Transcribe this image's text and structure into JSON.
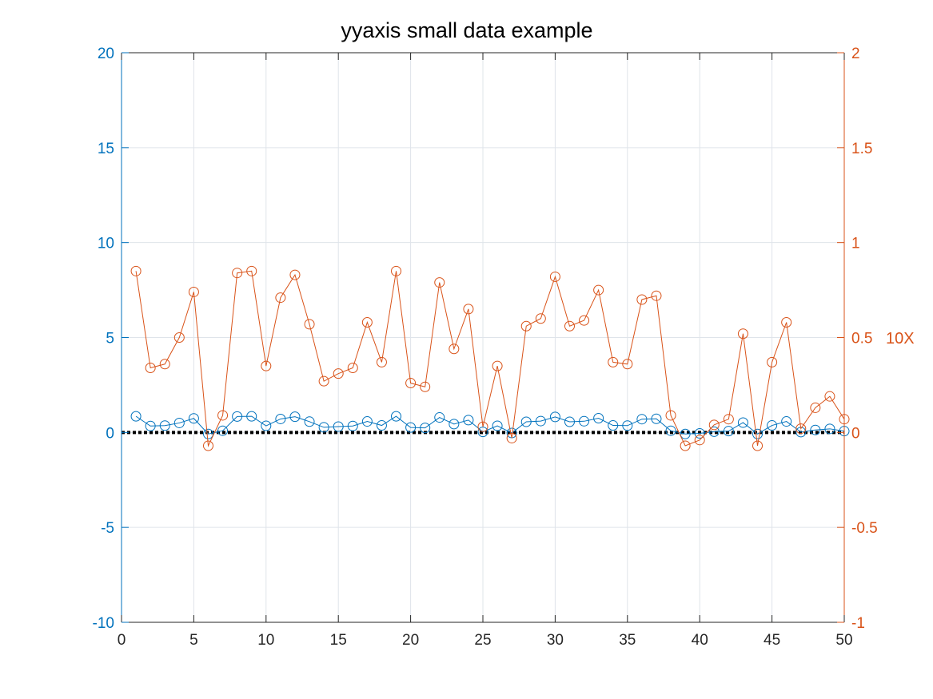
{
  "chart_data": {
    "type": "line",
    "title": "yyaxis  small data example",
    "xlim": [
      0,
      50
    ],
    "x_ticks": [
      0,
      5,
      10,
      15,
      20,
      25,
      30,
      35,
      40,
      45,
      50
    ],
    "grid": true,
    "left_axis": {
      "ylim": [
        -10,
        20
      ],
      "ticks": [
        -10,
        -5,
        0,
        5,
        10,
        15,
        20
      ],
      "color": "#0072BD"
    },
    "right_axis": {
      "ylim": [
        -1,
        2
      ],
      "ticks": [
        -1,
        -0.5,
        0,
        0.5,
        1,
        1.5,
        2
      ],
      "color": "#D95319",
      "ylabel": "10X"
    },
    "reference_line": {
      "y": 0,
      "style": "dotted",
      "color": "#000000"
    },
    "x": [
      1,
      2,
      3,
      4,
      5,
      6,
      7,
      8,
      9,
      10,
      11,
      12,
      13,
      14,
      15,
      16,
      17,
      18,
      19,
      20,
      21,
      22,
      23,
      24,
      25,
      26,
      27,
      28,
      29,
      30,
      31,
      32,
      33,
      34,
      35,
      36,
      37,
      38,
      39,
      40,
      41,
      42,
      43,
      44,
      45,
      46,
      47,
      48,
      49,
      50
    ],
    "series": [
      {
        "axis": "left",
        "color": "#0072BD",
        "marker": "circle",
        "values": [
          0.85,
          0.34,
          0.36,
          0.5,
          0.74,
          -0.08,
          0.09,
          0.84,
          0.85,
          0.35,
          0.71,
          0.83,
          0.57,
          0.27,
          0.31,
          0.34,
          0.58,
          0.37,
          0.85,
          0.26,
          0.24,
          0.79,
          0.44,
          0.65,
          0.03,
          0.35,
          -0.03,
          0.56,
          0.6,
          0.82,
          0.56,
          0.59,
          0.75,
          0.37,
          0.36,
          0.7,
          0.72,
          0.09,
          -0.08,
          -0.05,
          0.04,
          0.07,
          0.52,
          -0.08,
          0.37,
          0.58,
          0.02,
          0.13,
          0.19,
          0.07
        ]
      },
      {
        "axis": "right",
        "color": "#D95319",
        "marker": "circle",
        "values": [
          0.85,
          0.34,
          0.36,
          0.5,
          0.74,
          -0.07,
          0.09,
          0.84,
          0.85,
          0.35,
          0.71,
          0.83,
          0.57,
          0.27,
          0.31,
          0.34,
          0.58,
          0.37,
          0.85,
          0.26,
          0.24,
          0.79,
          0.44,
          0.65,
          0.03,
          0.35,
          -0.03,
          0.56,
          0.6,
          0.82,
          0.56,
          0.59,
          0.75,
          0.37,
          0.36,
          0.7,
          0.72,
          0.09,
          -0.07,
          -0.04,
          0.04,
          0.07,
          0.52,
          -0.07,
          0.37,
          0.58,
          0.02,
          0.13,
          0.19,
          0.07
        ]
      }
    ]
  }
}
